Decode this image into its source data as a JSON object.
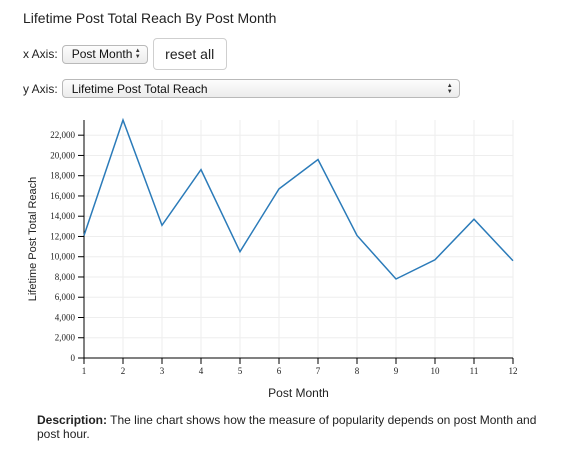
{
  "chart_title": "Lifetime Post Total Reach By Post Month",
  "controls": {
    "x_axis_label": "x Axis:",
    "x_axis_value": "Post Month",
    "reset_label": "reset all",
    "y_axis_label": "y Axis:",
    "y_axis_value": "Lifetime Post Total Reach"
  },
  "description": {
    "label": "Description:",
    "text": "The line chart shows how the measure of popularity depends on post Month and post hour."
  },
  "chart_data": {
    "type": "line",
    "xlabel": "Post Month",
    "ylabel": "Lifetime Post Total Reach",
    "x": [
      1,
      2,
      3,
      4,
      5,
      6,
      7,
      8,
      9,
      10,
      11,
      12
    ],
    "series": [
      {
        "values": [
          12100,
          23500,
          13100,
          18600,
          10500,
          16700,
          19600,
          12100,
          7800,
          9700,
          13700,
          9600
        ],
        "color": "#2b7bb9"
      }
    ],
    "xlim": [
      1,
      12
    ],
    "ylim": [
      0,
      23500
    ],
    "y_ticks": [
      0,
      2000,
      4000,
      6000,
      8000,
      10000,
      12000,
      14000,
      16000,
      18000,
      20000,
      22000
    ],
    "y_tick_labels": [
      "0",
      "2,000",
      "4,000",
      "6,000",
      "8,000",
      "10,000",
      "12,000",
      "14,000",
      "16,000",
      "18,000",
      "20,000",
      "22,000"
    ],
    "x_ticks": [
      1,
      2,
      3,
      4,
      5,
      6,
      7,
      8,
      9,
      10,
      11,
      12
    ],
    "grid": true
  }
}
